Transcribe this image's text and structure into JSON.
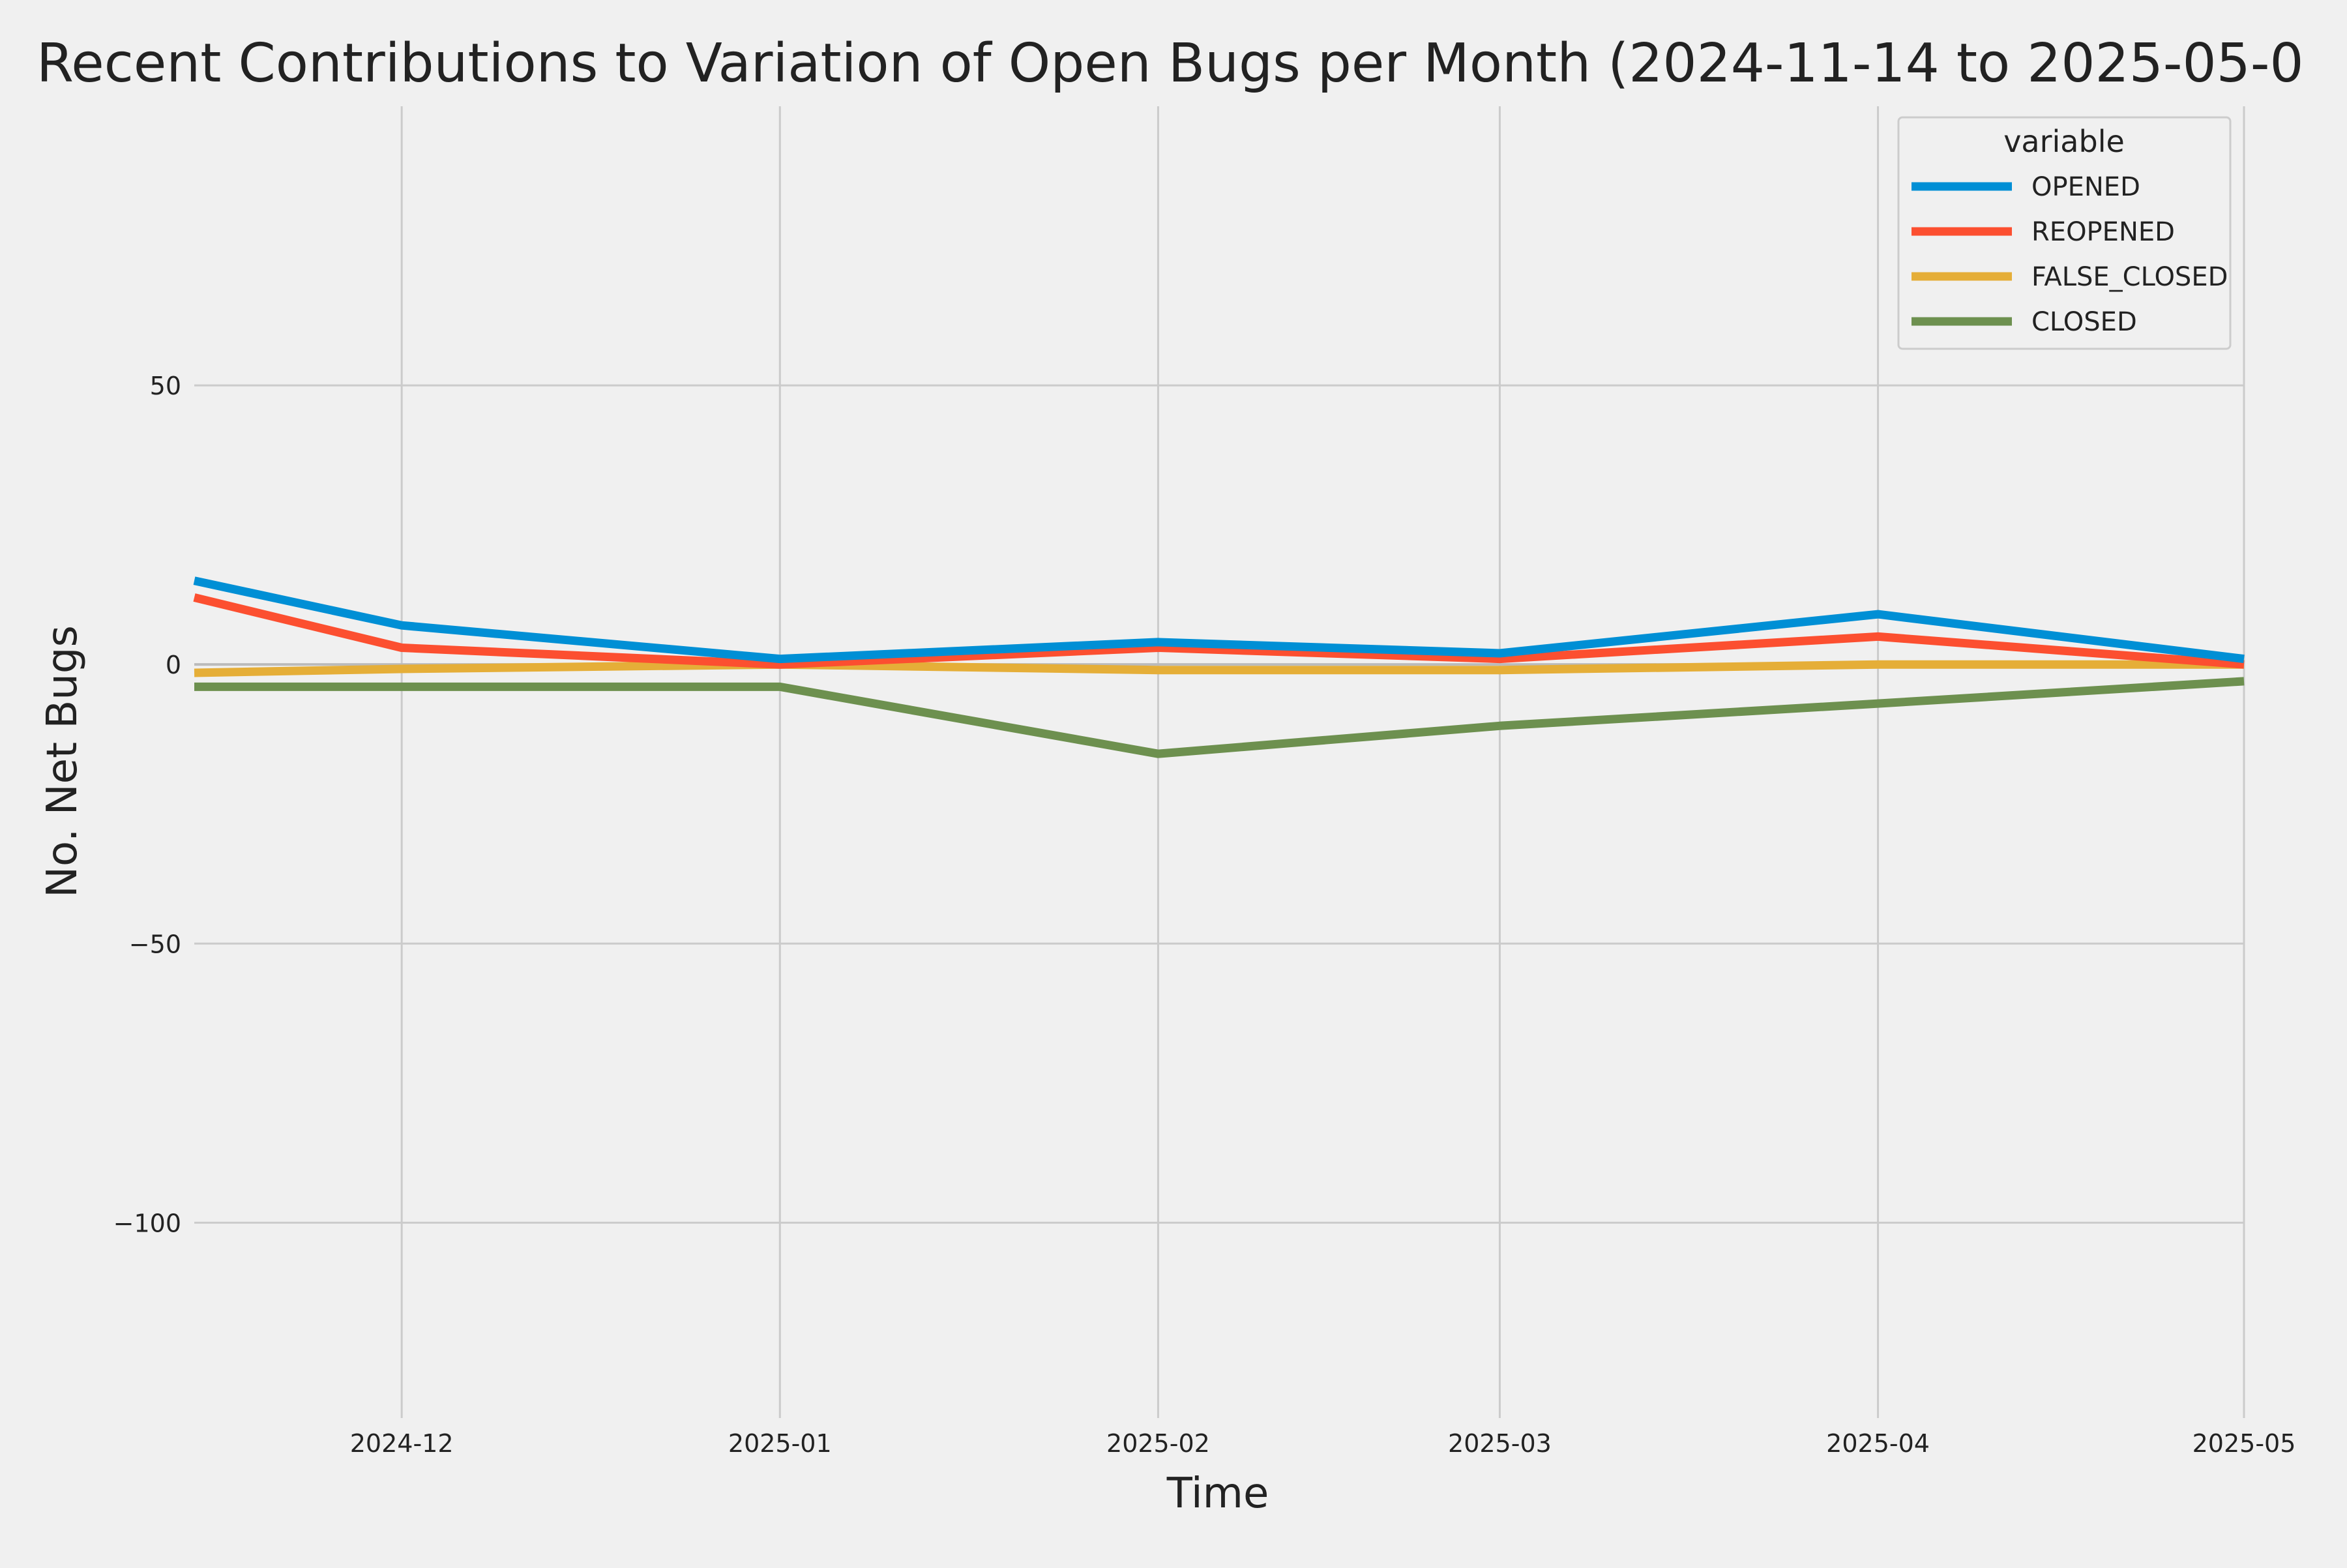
{
  "chart_data": {
    "type": "line",
    "title": "Recent Contributions to Variation of Open Bugs per Month (2024-11-14 to 2025-05-0",
    "xlabel": "Time",
    "ylabel": "No. Net Bugs",
    "x": [
      "2024-11-14",
      "2024-12-01",
      "2025-01-01",
      "2025-02-01",
      "2025-03-01",
      "2025-04-01",
      "2025-05-01"
    ],
    "x_ticks": [
      "2024-12",
      "2025-01",
      "2025-02",
      "2025-03",
      "2025-04",
      "2025-05"
    ],
    "x_range": [
      "2024-11-14",
      "2025-05-01"
    ],
    "y_ticks": [
      50,
      0,
      -50,
      -100
    ],
    "y_tick_labels": [
      "50",
      "0",
      "−50",
      "−100"
    ],
    "ylim": [
      -135,
      100
    ],
    "grid": true,
    "legend": {
      "title": "variable",
      "position": "top-right"
    },
    "series": [
      {
        "name": "OPENED",
        "color": "#008fd5",
        "values": [
          15,
          7,
          1,
          4,
          2,
          9,
          1
        ]
      },
      {
        "name": "REOPENED",
        "color": "#fc4f30",
        "values": [
          12,
          3,
          0,
          3,
          1,
          5,
          0
        ]
      },
      {
        "name": "FALSE_CLOSED",
        "color": "#e5ae38",
        "values": [
          -1.5,
          -0.8,
          0,
          -1,
          -1,
          0,
          0
        ]
      },
      {
        "name": "CLOSED",
        "color": "#6d904f",
        "values": [
          -4,
          -4,
          -4,
          -16,
          -11,
          -7,
          -3
        ]
      }
    ]
  }
}
